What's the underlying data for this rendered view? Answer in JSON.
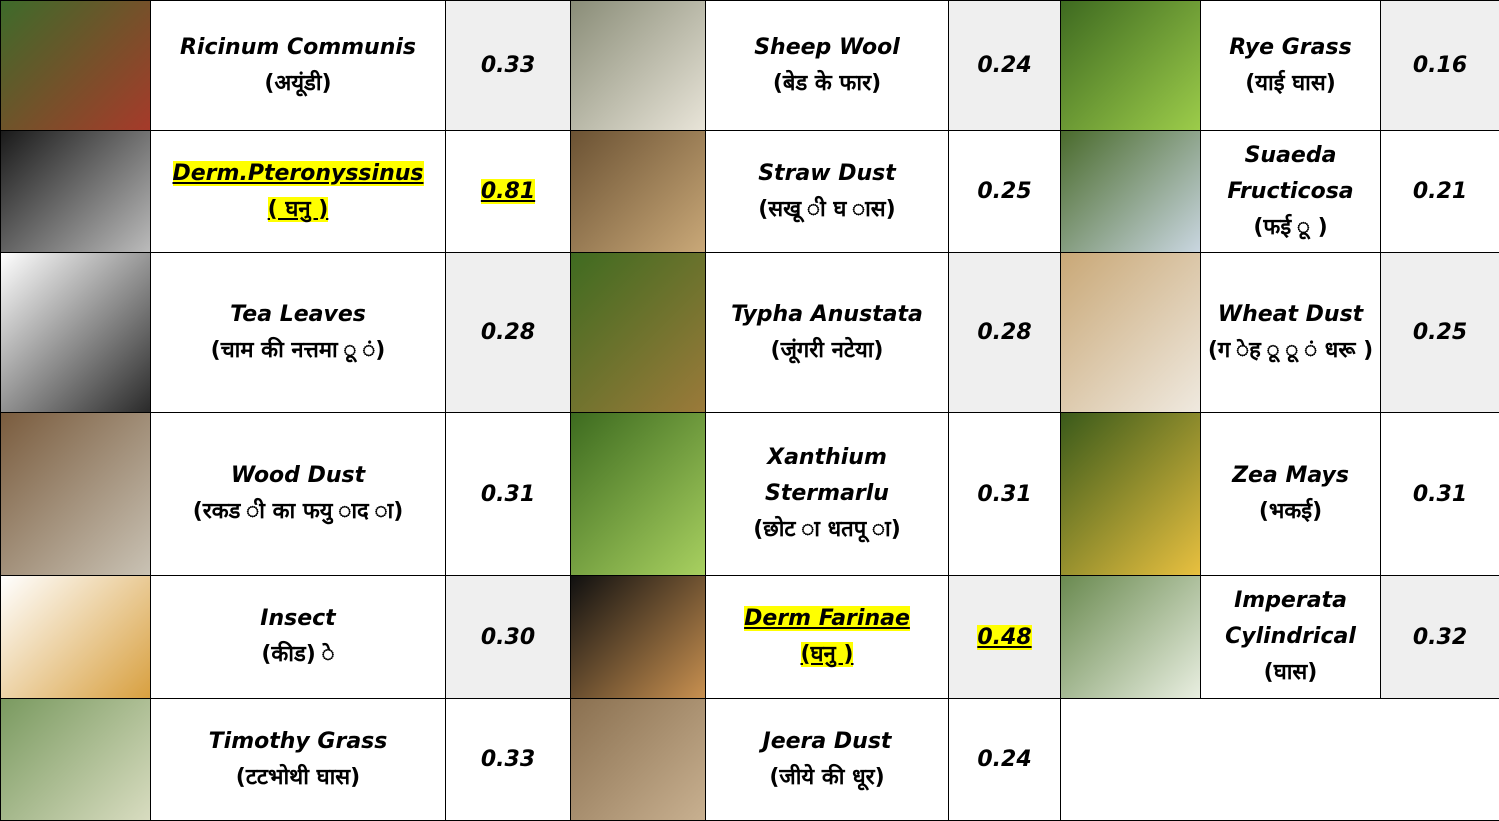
{
  "table": {
    "rows": [
      [
        {
          "name": "Ricinum Communis",
          "local": "(अयूंडी)",
          "value": "0.33"
        },
        {
          "name": "Sheep Wool",
          "local": "(बेड के फार)",
          "value": "0.24"
        },
        {
          "name": "Rye Grass",
          "local": "(याई घास)",
          "value": "0.16"
        }
      ],
      [
        {
          "name": "Derm.Pteronyssinus",
          "local": "( घनु )",
          "value": "0.81",
          "highlight": true
        },
        {
          "name": "Straw Dust",
          "local": "(सखू ी घ ास)",
          "value": "0.25"
        },
        {
          "name": "Suaeda Fructicosa",
          "local": "(फई ू )",
          "value": "0.21"
        }
      ],
      [
        {
          "name": "Tea Leaves",
          "local": "(चाम की नत्तमा ू ं)",
          "value": "0.28"
        },
        {
          "name": "Typha Anustata",
          "local": "(जूंगरी नटेया)",
          "value": "0.28"
        },
        {
          "name": "Wheat Dust",
          "local": "(ग ेह ू ू ं धरू )",
          "value": "0.25"
        }
      ],
      [
        {
          "name": "Wood Dust",
          "local": "(रकड ी का फयु ाद ा)",
          "value": "0.31"
        },
        {
          "name": "Xanthium Stermarlu",
          "local": "(छोट ा धतपू ा)",
          "value": "0.31"
        },
        {
          "name": "Zea Mays",
          "local": "(भकई)",
          "value": "0.31"
        }
      ],
      [
        {
          "name": "Insect",
          "local": "(कीड) े",
          "value": "0.30"
        },
        {
          "name": "Derm Farinae",
          "local": "(घनु )",
          "value": "0.48",
          "highlight": true
        },
        {
          "name": "Imperata Cylindrical",
          "local": "(घास)",
          "value": "0.32"
        }
      ],
      [
        {
          "name": "Timothy Grass",
          "local": "(टटभोथी घास)",
          "value": "0.33"
        },
        {
          "name": "Jeera Dust",
          "local": "(जीये की धूर)",
          "value": "0.24"
        }
      ]
    ]
  }
}
